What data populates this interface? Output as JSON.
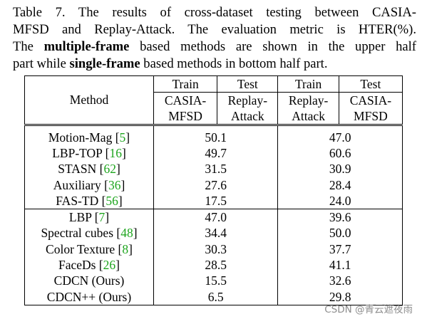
{
  "caption": {
    "line1": "Table 7. The results of cross-dataset testing between CASIA-",
    "line2": "MFSD and Replay-Attack. The evaluation metric is HTER(%).",
    "line3_a": "The ",
    "line3_b": "multiple-frame",
    "line3_c": " based methods are shown in the upper half",
    "line4_a": "part while ",
    "line4_b": "single-frame",
    "line4_c": " based methods in bottom half part."
  },
  "table": {
    "method_header": "Method",
    "col1": {
      "phase": "Train",
      "dataset_l1": "CASIA-",
      "dataset_l2": "MFSD"
    },
    "col2": {
      "phase": "Test",
      "dataset_l1": "Replay-",
      "dataset_l2": "Attack"
    },
    "col3": {
      "phase": "Train",
      "dataset_l1": "Replay-",
      "dataset_l2": "Attack"
    },
    "col4": {
      "phase": "Test",
      "dataset_l1": "CASIA-",
      "dataset_l2": "MFSD"
    },
    "multi_frame": [
      {
        "method": "Motion-Mag",
        "ref": "5",
        "ca_ra": "50.1",
        "ra_ca": "47.0"
      },
      {
        "method": "LBP-TOP",
        "ref": "16",
        "ca_ra": "49.7",
        "ra_ca": "60.6"
      },
      {
        "method": "STASN",
        "ref": "62",
        "ca_ra": "31.5",
        "ra_ca": "30.9"
      },
      {
        "method": "Auxiliary",
        "ref": "36",
        "ca_ra": "27.6",
        "ra_ca": "28.4"
      },
      {
        "method": "FAS-TD",
        "ref": "56",
        "ca_ra": "17.5",
        "ra_ca": "24.0"
      }
    ],
    "single_frame": [
      {
        "method": "LBP",
        "ref": "7",
        "ca_ra": "47.0",
        "ra_ca": "39.6"
      },
      {
        "method": "Spectral cubes",
        "ref": "48",
        "ca_ra": "34.4",
        "ra_ca": "50.0"
      },
      {
        "method": "Color Texture",
        "ref": "8",
        "ca_ra": "30.3",
        "ra_ca": "37.7"
      },
      {
        "method": "FaceDs",
        "ref": "26",
        "ca_ra": "28.5",
        "ra_ca": "41.1"
      },
      {
        "method": "CDCN (Ours)",
        "ref": "",
        "ca_ra": "15.5",
        "ra_ca": "32.6"
      },
      {
        "method": "CDCN++ (Ours)",
        "ref": "",
        "ca_ra": "6.5",
        "ra_ca": "29.8"
      }
    ]
  },
  "watermark": "CSDN @青云遮夜雨"
}
